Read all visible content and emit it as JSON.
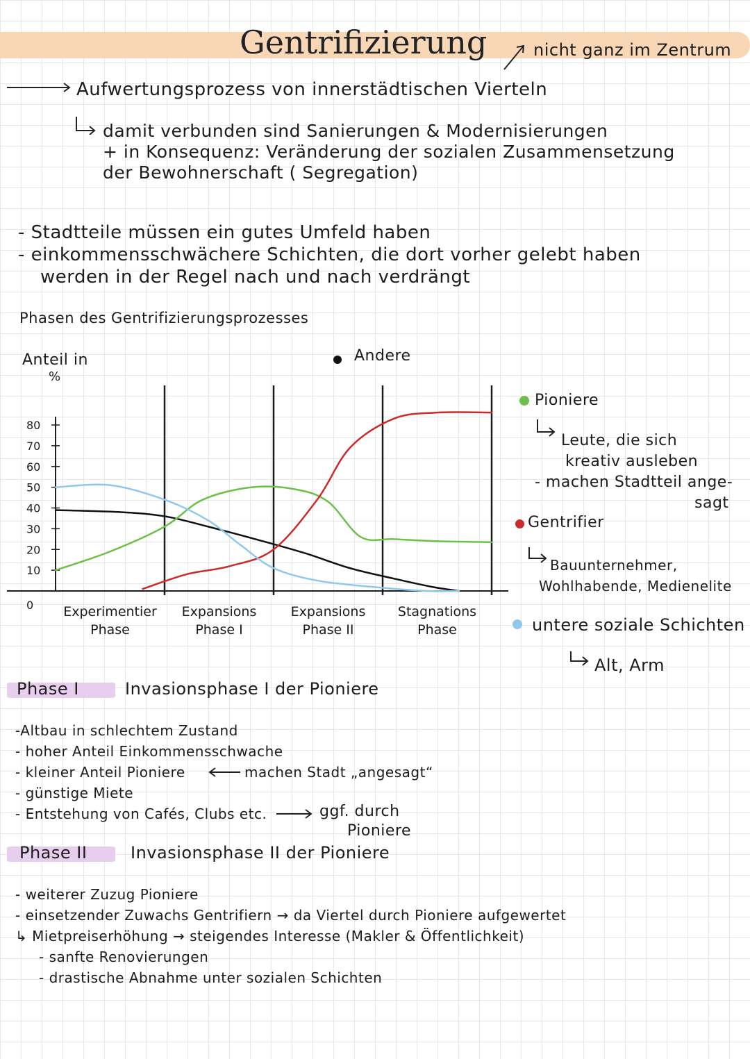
{
  "header": {
    "title": "Gentrifizierung",
    "note": "nicht ganz im Zentrum"
  },
  "intro": {
    "definition": "Aufwertungsprozess von innerstädtischen Vierteln",
    "line1": "damit verbunden sind Sanierungen & Modernisierungen",
    "line2": "+ in Konsequenz: Veränderung der sozialen Zusammensetzung",
    "line3": "der Bewohnerschaft ( Segregation)"
  },
  "bullets": {
    "b1": "- Stadtteile müssen ein gutes Umfeld haben",
    "b2": "- einkommensschwächere Schichten, die dort vorher gelebt haben",
    "b2_cont": "werden in der Regel nach und nach verdrängt"
  },
  "phases_heading": "Phasen des Gentrifizierungsprozesses",
  "chart_data": {
    "type": "line",
    "ylabel_line1": "Anteil in",
    "ylabel_line2": "%",
    "yticks": [
      "80",
      "70",
      "60",
      "50",
      "40",
      "30",
      "20",
      "10",
      "0"
    ],
    "ylim": [
      0,
      100
    ],
    "x_domain": [
      0,
      4
    ],
    "phase_labels": [
      {
        "line1": "Experimentier",
        "line2": "Phase"
      },
      {
        "line1": "Expansions",
        "line2": "Phase I"
      },
      {
        "line1": "Expansions",
        "line2": "Phase II"
      },
      {
        "line1": "Stagnations",
        "line2": "Phase"
      }
    ],
    "series": [
      {
        "name": "Andere",
        "color": "#111111",
        "points": [
          [
            0,
            39
          ],
          [
            0.6,
            38
          ],
          [
            1.0,
            36
          ],
          [
            1.4,
            31
          ],
          [
            1.9,
            24
          ],
          [
            2.3,
            18
          ],
          [
            2.7,
            11
          ],
          [
            3.1,
            6
          ],
          [
            3.45,
            2
          ],
          [
            3.7,
            0
          ]
        ]
      },
      {
        "name": "Pioniere",
        "color": "#6cc04a",
        "points": [
          [
            0,
            10
          ],
          [
            0.5,
            19
          ],
          [
            1.0,
            31
          ],
          [
            1.35,
            44
          ],
          [
            1.8,
            50
          ],
          [
            2.2,
            49
          ],
          [
            2.5,
            43
          ],
          [
            2.8,
            26
          ],
          [
            3.1,
            25
          ],
          [
            3.5,
            24
          ],
          [
            4.0,
            23.5
          ]
        ]
      },
      {
        "name": "Gentrifier",
        "color": "#cc2a2a",
        "points": [
          [
            0.8,
            1
          ],
          [
            1.2,
            8
          ],
          [
            1.6,
            12
          ],
          [
            2.0,
            20
          ],
          [
            2.4,
            44
          ],
          [
            2.7,
            69
          ],
          [
            3.1,
            83
          ],
          [
            3.5,
            86
          ],
          [
            4.0,
            86
          ]
        ]
      },
      {
        "name": "untere soziale Schichten",
        "color": "#8fc8ec",
        "points": [
          [
            0,
            50
          ],
          [
            0.5,
            51
          ],
          [
            1.0,
            44
          ],
          [
            1.4,
            34
          ],
          [
            1.7,
            22
          ],
          [
            2.0,
            11
          ],
          [
            2.4,
            5
          ],
          [
            2.9,
            2
          ],
          [
            3.4,
            0
          ],
          [
            3.7,
            0
          ]
        ]
      }
    ]
  },
  "legend": {
    "andere": "Andere",
    "pioniere": "Pioniere",
    "pioniere_desc1": "Leute, die sich",
    "pioniere_desc2": "kreativ ausleben",
    "pioniere_desc3": "- machen Stadtteil ange-",
    "pioniere_desc4": "sagt",
    "gentrifier": "Gentrifier",
    "gentrifier_desc1": "Bauunternehmer,",
    "gentrifier_desc2": "Wohlhabende, Medienelite",
    "untere": "untere soziale Schichten",
    "untere_desc": "Alt, Arm"
  },
  "phase1": {
    "label": "Phase I",
    "heading": "Invasionsphase I der Pioniere",
    "items": [
      "-Altbau in schlechtem Zustand",
      "- hoher Anteil Einkommensschwache",
      "- kleiner Anteil Pioniere",
      "- günstige Miete",
      "- Entstehung von Cafés, Clubs etc."
    ],
    "note_made": "machen Stadt „angesagt“",
    "note_ggf1": "ggf. durch",
    "note_ggf2": "Pioniere"
  },
  "phase2": {
    "label": "Phase II",
    "heading": "Invasionsphase II der Pioniere",
    "items": [
      "- weiterer Zuzug Pioniere",
      "- einsetzender Zuwachs Gentrifiern → da Viertel durch Pioniere aufgewertet",
      "↳ Mietpreiserhöhung → steigendes Interesse (Makler & Öffentlichkeit)",
      "- sanfte Renovierungen",
      "- drastische Abnahme unter sozialen Schichten"
    ]
  },
  "colors": {
    "title_band": "#f8d7b6",
    "phase_band": "#e7cdee",
    "green": "#6cc04a",
    "red": "#cc2a2a",
    "blue": "#8fc8ec"
  }
}
